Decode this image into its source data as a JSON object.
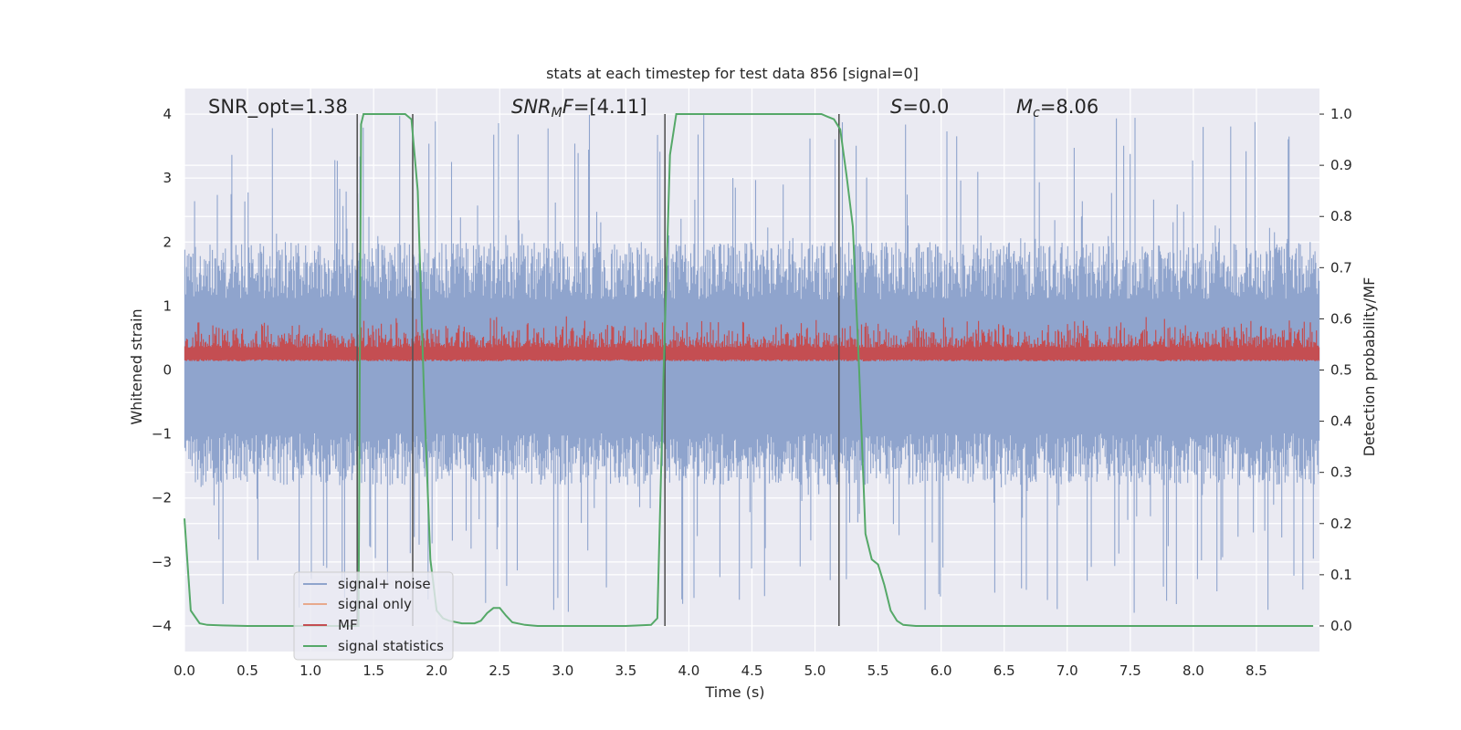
{
  "chart_data": {
    "type": "line",
    "title": "stats at each timestep for test data 856 [signal=0]",
    "xlabel": "Time (s)",
    "ylabel_left": "Whitened strain",
    "ylabel_right": "Detection probability/MF",
    "xlim": [
      0.0,
      9.0
    ],
    "ylim_left": [
      -4.4,
      4.4
    ],
    "ylim_right": [
      -0.05,
      1.05
    ],
    "xticks": [
      "0.0",
      "0.5",
      "1.0",
      "1.5",
      "2.0",
      "2.5",
      "3.0",
      "3.5",
      "4.0",
      "4.5",
      "5.0",
      "5.5",
      "6.0",
      "6.5",
      "7.0",
      "7.5",
      "8.0",
      "8.5"
    ],
    "yticks_left": [
      "4",
      "3",
      "2",
      "1",
      "0",
      "−1",
      "−2",
      "−3",
      "−4"
    ],
    "yticks_right": [
      "1.0",
      "0.9",
      "0.8",
      "0.7",
      "0.6",
      "0.5",
      "0.4",
      "0.3",
      "0.2",
      "0.1",
      "0.0"
    ],
    "annotations": {
      "snr_opt": "SNR_opt=1.38",
      "snr_mf_italic": "SNR",
      "snr_mf_sub": "M",
      "snr_mf_mid": "F",
      "snr_mf_rest": "=[4.11]",
      "s_italic": "S",
      "s_rest": "=0.0",
      "mc_italic": "M",
      "mc_sub": "c",
      "mc_rest": "=8.06"
    },
    "legend": {
      "placement": "lower-left",
      "entries": [
        {
          "label": "signal+ noise",
          "color": "#8fa4cd"
        },
        {
          "label": "signal only",
          "color": "#e8a98c"
        },
        {
          "label": "MF",
          "color": "#c44e52"
        },
        {
          "label": "signal statistics",
          "color": "#55a868"
        }
      ]
    },
    "noise_band": {
      "typical_upper": 2.0,
      "typical_lower": -1.8,
      "max_peak": 4.0,
      "min_trough": -3.8
    },
    "mf_band": {
      "lower": 0.08,
      "upper": 0.85
    },
    "detection_boundaries_s": [
      1.37,
      1.81,
      3.81,
      5.19
    ],
    "series": [
      {
        "name": "signal statistics",
        "axis": "right",
        "x": [
          0.0,
          0.05,
          0.12,
          0.18,
          0.3,
          0.5,
          0.8,
          1.0,
          1.2,
          1.3,
          1.36,
          1.38,
          1.4,
          1.42,
          1.45,
          1.5,
          1.55,
          1.6,
          1.7,
          1.75,
          1.8,
          1.85,
          1.9,
          1.95,
          2.0,
          2.05,
          2.1,
          2.2,
          2.3,
          2.35,
          2.4,
          2.45,
          2.5,
          2.55,
          2.6,
          2.7,
          2.8,
          3.0,
          3.5,
          3.7,
          3.75,
          3.8,
          3.85,
          3.9,
          4.0,
          4.5,
          5.0,
          5.05,
          5.1,
          5.15,
          5.2,
          5.25,
          5.3,
          5.35,
          5.4,
          5.45,
          5.5,
          5.55,
          5.6,
          5.65,
          5.7,
          5.8,
          6.0,
          7.0,
          8.0,
          8.95
        ],
        "values": [
          0.21,
          0.03,
          0.005,
          0.002,
          0.001,
          0.0,
          0.0,
          0.0,
          0.0,
          0.0,
          0.0,
          0.0,
          0.98,
          1.0,
          1.0,
          1.0,
          1.0,
          1.0,
          1.0,
          1.0,
          0.99,
          0.85,
          0.45,
          0.13,
          0.03,
          0.015,
          0.01,
          0.005,
          0.005,
          0.01,
          0.025,
          0.035,
          0.035,
          0.02,
          0.007,
          0.002,
          0.0,
          0.0,
          0.0,
          0.002,
          0.015,
          0.5,
          0.92,
          1.0,
          1.0,
          1.0,
          1.0,
          1.0,
          0.995,
          0.99,
          0.97,
          0.88,
          0.78,
          0.5,
          0.18,
          0.13,
          0.12,
          0.08,
          0.03,
          0.01,
          0.002,
          0.0,
          0.0,
          0.0,
          0.0,
          0.0
        ]
      }
    ]
  }
}
